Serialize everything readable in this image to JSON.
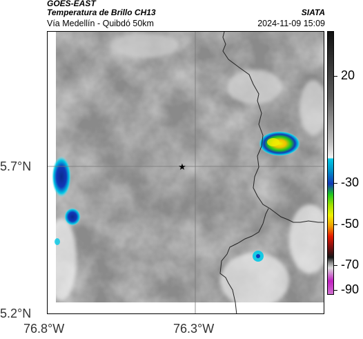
{
  "header": {
    "satellite": "GOES-EAST",
    "product": "Temperatura de Brillo CH13",
    "region": "Vía Medellín - Quibdó 50km",
    "agency": "SIATA",
    "datetime": "2024-11-09 15:09"
  },
  "axes": {
    "y_ticks": [
      {
        "label": "5.7°N",
        "value": 5.7
      },
      {
        "label": "5.2°N",
        "value": 5.2
      }
    ],
    "x_ticks": [
      {
        "label": "76.8°W",
        "value": -76.8
      },
      {
        "label": "76.3°W",
        "value": -76.3
      }
    ],
    "grid": true
  },
  "marker": {
    "symbol": "★",
    "name": "station-star"
  },
  "colorbar": {
    "ticks": [
      {
        "label": "20",
        "value": 20
      },
      {
        "label": "-30",
        "value": -30
      },
      {
        "label": "-50",
        "value": -50
      },
      {
        "label": "-70",
        "value": -70
      },
      {
        "label": "-90",
        "value": -90
      }
    ],
    "colors": {
      "warm_top": "#111111",
      "warm_bottom": "#f2f2f2",
      "cyan": "#00c8e6",
      "blue": "#1238b8",
      "green": "#1ec81e",
      "yellow": "#f0f000",
      "red": "#e61a00",
      "dark": "#141414",
      "magenta": "#c020c0"
    }
  },
  "colors": {
    "cloud_gray": "#9a9a9a",
    "border_line": "#222222"
  }
}
